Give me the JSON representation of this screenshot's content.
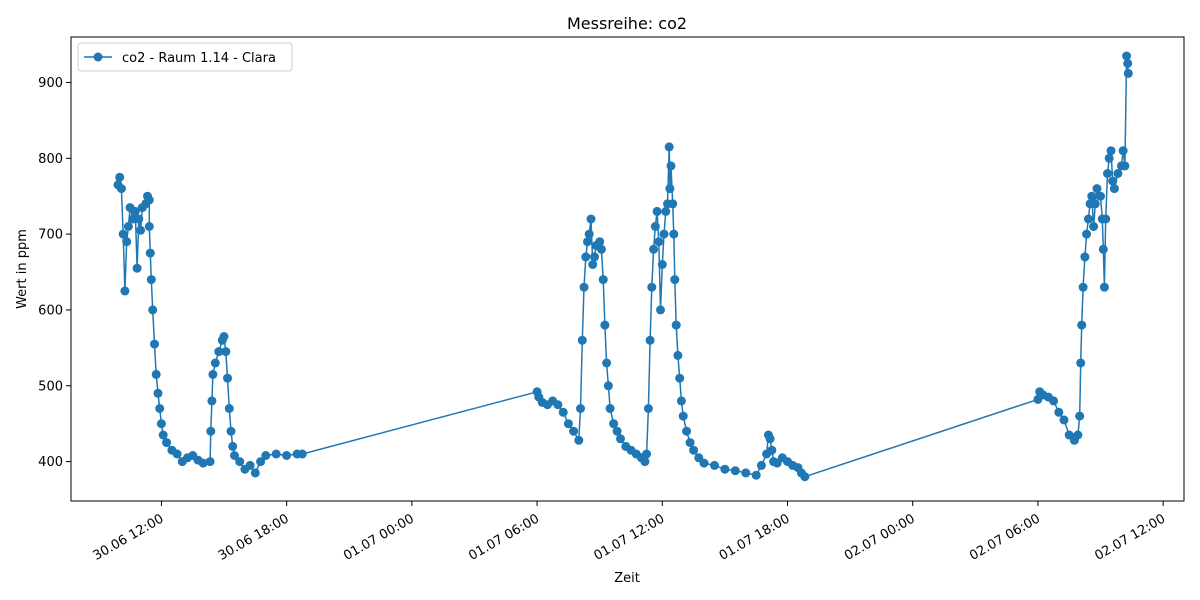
{
  "chart_data": {
    "type": "line",
    "title": "Messreihe: co2",
    "xlabel": "Zeit",
    "ylabel": "Wert in ppm",
    "x_axis_type": "datetime",
    "xlim": [
      "2025-06-30T07:40",
      "2025-07-02T13:00"
    ],
    "ylim": [
      348,
      960
    ],
    "x_ticks": [
      {
        "t": "2025-06-30T12:00",
        "label": "30.06 12:00"
      },
      {
        "t": "2025-06-30T18:00",
        "label": "30.06 18:00"
      },
      {
        "t": "2025-07-01T00:00",
        "label": "01.07 00:00"
      },
      {
        "t": "2025-07-01T06:00",
        "label": "01.07 06:00"
      },
      {
        "t": "2025-07-01T12:00",
        "label": "01.07 12:00"
      },
      {
        "t": "2025-07-01T18:00",
        "label": "01.07 18:00"
      },
      {
        "t": "2025-07-02T00:00",
        "label": "02.07 00:00"
      },
      {
        "t": "2025-07-02T06:00",
        "label": "02.07 06:00"
      },
      {
        "t": "2025-07-02T12:00",
        "label": "02.07 12:00"
      }
    ],
    "y_ticks": [
      400,
      500,
      600,
      700,
      800,
      900
    ],
    "grid": false,
    "legend_position": "top-left",
    "color": "#1f77b4",
    "series": [
      {
        "name": "co2 - Raum 1.14 - Clara",
        "marker": "circle",
        "points": [
          [
            "2025-06-30T09:55",
            765
          ],
          [
            "2025-06-30T10:00",
            775
          ],
          [
            "2025-06-30T10:05",
            760
          ],
          [
            "2025-06-30T10:10",
            700
          ],
          [
            "2025-06-30T10:15",
            625
          ],
          [
            "2025-06-30T10:20",
            690
          ],
          [
            "2025-06-30T10:25",
            710
          ],
          [
            "2025-06-30T10:30",
            735
          ],
          [
            "2025-06-30T10:38",
            720
          ],
          [
            "2025-06-30T10:45",
            730
          ],
          [
            "2025-06-30T10:50",
            655
          ],
          [
            "2025-06-30T10:55",
            720
          ],
          [
            "2025-06-30T11:00",
            705
          ],
          [
            "2025-06-30T11:05",
            735
          ],
          [
            "2025-06-30T11:15",
            740
          ],
          [
            "2025-06-30T11:20",
            750
          ],
          [
            "2025-06-30T11:25",
            745
          ],
          [
            "2025-06-30T11:25",
            710
          ],
          [
            "2025-06-30T11:28",
            675
          ],
          [
            "2025-06-30T11:31",
            640
          ],
          [
            "2025-06-30T11:35",
            600
          ],
          [
            "2025-06-30T11:40",
            555
          ],
          [
            "2025-06-30T11:45",
            515
          ],
          [
            "2025-06-30T11:50",
            490
          ],
          [
            "2025-06-30T11:55",
            470
          ],
          [
            "2025-06-30T12:00",
            450
          ],
          [
            "2025-06-30T12:05",
            435
          ],
          [
            "2025-06-30T12:15",
            425
          ],
          [
            "2025-06-30T12:30",
            415
          ],
          [
            "2025-06-30T12:45",
            410
          ],
          [
            "2025-06-30T13:00",
            400
          ],
          [
            "2025-06-30T13:15",
            405
          ],
          [
            "2025-06-30T13:30",
            408
          ],
          [
            "2025-06-30T13:45",
            402
          ],
          [
            "2025-06-30T14:00",
            398
          ],
          [
            "2025-06-30T14:20",
            400
          ],
          [
            "2025-06-30T14:22",
            440
          ],
          [
            "2025-06-30T14:25",
            480
          ],
          [
            "2025-06-30T14:28",
            515
          ],
          [
            "2025-06-30T14:35",
            530
          ],
          [
            "2025-06-30T14:45",
            545
          ],
          [
            "2025-06-30T14:55",
            560
          ],
          [
            "2025-06-30T15:00",
            565
          ],
          [
            "2025-06-30T15:05",
            545
          ],
          [
            "2025-06-30T15:10",
            510
          ],
          [
            "2025-06-30T15:15",
            470
          ],
          [
            "2025-06-30T15:20",
            440
          ],
          [
            "2025-06-30T15:25",
            420
          ],
          [
            "2025-06-30T15:30",
            408
          ],
          [
            "2025-06-30T15:45",
            400
          ],
          [
            "2025-06-30T16:00",
            390
          ],
          [
            "2025-06-30T16:15",
            395
          ],
          [
            "2025-06-30T16:30",
            385
          ],
          [
            "2025-06-30T16:45",
            400
          ],
          [
            "2025-06-30T17:00",
            408
          ],
          [
            "2025-06-30T17:30",
            410
          ],
          [
            "2025-06-30T18:00",
            408
          ],
          [
            "2025-06-30T18:30",
            410
          ],
          [
            "2025-06-30T18:45",
            410
          ],
          [
            "2025-07-01T06:00",
            492
          ],
          [
            "2025-07-01T06:05",
            485
          ],
          [
            "2025-07-01T06:15",
            478
          ],
          [
            "2025-07-01T06:30",
            475
          ],
          [
            "2025-07-01T06:45",
            480
          ],
          [
            "2025-07-01T07:00",
            475
          ],
          [
            "2025-07-01T07:15",
            465
          ],
          [
            "2025-07-01T07:30",
            450
          ],
          [
            "2025-07-01T07:45",
            440
          ],
          [
            "2025-07-01T08:00",
            428
          ],
          [
            "2025-07-01T08:05",
            470
          ],
          [
            "2025-07-01T08:10",
            560
          ],
          [
            "2025-07-01T08:15",
            630
          ],
          [
            "2025-07-01T08:20",
            670
          ],
          [
            "2025-07-01T08:25",
            690
          ],
          [
            "2025-07-01T08:30",
            700
          ],
          [
            "2025-07-01T08:35",
            720
          ],
          [
            "2025-07-01T08:40",
            660
          ],
          [
            "2025-07-01T08:45",
            670
          ],
          [
            "2025-07-01T08:50",
            685
          ],
          [
            "2025-07-01T09:00",
            690
          ],
          [
            "2025-07-01T09:05",
            680
          ],
          [
            "2025-07-01T09:10",
            640
          ],
          [
            "2025-07-01T09:15",
            580
          ],
          [
            "2025-07-01T09:20",
            530
          ],
          [
            "2025-07-01T09:25",
            500
          ],
          [
            "2025-07-01T09:30",
            470
          ],
          [
            "2025-07-01T09:40",
            450
          ],
          [
            "2025-07-01T09:50",
            440
          ],
          [
            "2025-07-01T10:00",
            430
          ],
          [
            "2025-07-01T10:15",
            420
          ],
          [
            "2025-07-01T10:30",
            415
          ],
          [
            "2025-07-01T10:45",
            410
          ],
          [
            "2025-07-01T11:00",
            405
          ],
          [
            "2025-07-01T11:10",
            400
          ],
          [
            "2025-07-01T11:15",
            410
          ],
          [
            "2025-07-01T11:20",
            470
          ],
          [
            "2025-07-01T11:25",
            560
          ],
          [
            "2025-07-01T11:30",
            630
          ],
          [
            "2025-07-01T11:35",
            680
          ],
          [
            "2025-07-01T11:40",
            710
          ],
          [
            "2025-07-01T11:45",
            730
          ],
          [
            "2025-07-01T11:50",
            690
          ],
          [
            "2025-07-01T11:55",
            600
          ],
          [
            "2025-07-01T12:00",
            660
          ],
          [
            "2025-07-01T12:05",
            700
          ],
          [
            "2025-07-01T12:10",
            730
          ],
          [
            "2025-07-01T12:15",
            740
          ],
          [
            "2025-07-01T12:20",
            815
          ],
          [
            "2025-07-01T12:22",
            760
          ],
          [
            "2025-07-01T12:25",
            790
          ],
          [
            "2025-07-01T12:30",
            740
          ],
          [
            "2025-07-01T12:33",
            700
          ],
          [
            "2025-07-01T12:36",
            640
          ],
          [
            "2025-07-01T12:40",
            580
          ],
          [
            "2025-07-01T12:45",
            540
          ],
          [
            "2025-07-01T12:50",
            510
          ],
          [
            "2025-07-01T12:55",
            480
          ],
          [
            "2025-07-01T13:00",
            460
          ],
          [
            "2025-07-01T13:10",
            440
          ],
          [
            "2025-07-01T13:20",
            425
          ],
          [
            "2025-07-01T13:30",
            415
          ],
          [
            "2025-07-01T13:45",
            405
          ],
          [
            "2025-07-01T14:00",
            398
          ],
          [
            "2025-07-01T14:30",
            395
          ],
          [
            "2025-07-01T15:00",
            390
          ],
          [
            "2025-07-01T15:30",
            388
          ],
          [
            "2025-07-01T16:00",
            385
          ],
          [
            "2025-07-01T16:30",
            382
          ],
          [
            "2025-07-01T16:45",
            395
          ],
          [
            "2025-07-01T17:00",
            410
          ],
          [
            "2025-07-01T17:05",
            435
          ],
          [
            "2025-07-01T17:10",
            430
          ],
          [
            "2025-07-01T17:15",
            415
          ],
          [
            "2025-07-01T17:20",
            400
          ],
          [
            "2025-07-01T17:30",
            398
          ],
          [
            "2025-07-01T17:45",
            405
          ],
          [
            "2025-07-01T18:00",
            400
          ],
          [
            "2025-07-01T18:15",
            395
          ],
          [
            "2025-07-01T18:30",
            392
          ],
          [
            "2025-07-01T18:40",
            385
          ],
          [
            "2025-07-01T18:50",
            380
          ],
          [
            "2025-07-02T06:00",
            482
          ],
          [
            "2025-07-02T06:05",
            492
          ],
          [
            "2025-07-02T06:15",
            488
          ],
          [
            "2025-07-02T06:30",
            485
          ],
          [
            "2025-07-02T06:45",
            480
          ],
          [
            "2025-07-02T07:00",
            465
          ],
          [
            "2025-07-02T07:15",
            455
          ],
          [
            "2025-07-02T07:30",
            435
          ],
          [
            "2025-07-02T07:45",
            428
          ],
          [
            "2025-07-02T07:55",
            435
          ],
          [
            "2025-07-02T08:00",
            460
          ],
          [
            "2025-07-02T08:03",
            530
          ],
          [
            "2025-07-02T08:06",
            580
          ],
          [
            "2025-07-02T08:10",
            630
          ],
          [
            "2025-07-02T08:15",
            670
          ],
          [
            "2025-07-02T08:20",
            700
          ],
          [
            "2025-07-02T08:25",
            720
          ],
          [
            "2025-07-02T08:30",
            740
          ],
          [
            "2025-07-02T08:35",
            750
          ],
          [
            "2025-07-02T08:40",
            710
          ],
          [
            "2025-07-02T08:45",
            740
          ],
          [
            "2025-07-02T08:50",
            760
          ],
          [
            "2025-07-02T09:00",
            750
          ],
          [
            "2025-07-02T09:05",
            720
          ],
          [
            "2025-07-02T09:08",
            680
          ],
          [
            "2025-07-02T09:11",
            630
          ],
          [
            "2025-07-02T09:15",
            720
          ],
          [
            "2025-07-02T09:20",
            780
          ],
          [
            "2025-07-02T09:25",
            800
          ],
          [
            "2025-07-02T09:30",
            810
          ],
          [
            "2025-07-02T09:35",
            770
          ],
          [
            "2025-07-02T09:40",
            760
          ],
          [
            "2025-07-02T09:50",
            780
          ],
          [
            "2025-07-02T10:00",
            790
          ],
          [
            "2025-07-02T10:05",
            810
          ],
          [
            "2025-07-02T10:10",
            790
          ],
          [
            "2025-07-02T10:15",
            935
          ],
          [
            "2025-07-02T10:18",
            925
          ],
          [
            "2025-07-02T10:20",
            912
          ]
        ]
      }
    ]
  }
}
